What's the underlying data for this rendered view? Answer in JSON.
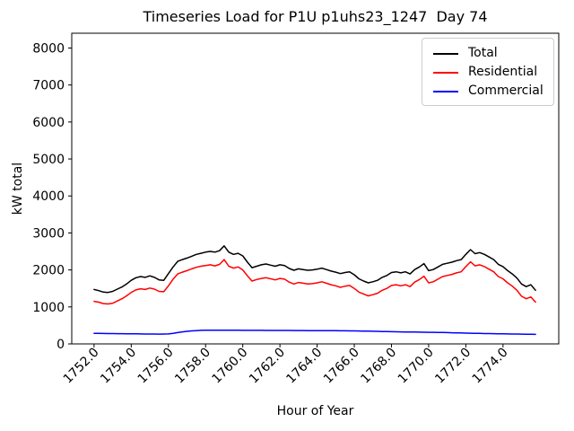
{
  "title": "Timeseries Load for P1U p1uhs23_1247  Day 74",
  "legend": {
    "position": "upper right",
    "items": [
      {
        "label": "Total",
        "color": "#000000"
      },
      {
        "label": "Residential",
        "color": "#ff0000"
      },
      {
        "label": "Commercial",
        "color": "#0000ff"
      }
    ]
  },
  "chart_data": {
    "type": "line",
    "title": "Timeseries Load for P1U p1uhs23_1247  Day 74",
    "xlabel": "Hour of Year",
    "ylabel": "kW total",
    "grid": false,
    "legend_position": "upper right",
    "xlim": [
      1750.8,
      1777.0
    ],
    "ylim": [
      0,
      8400
    ],
    "x_ticks": {
      "values": [
        1752,
        1754,
        1756,
        1758,
        1760,
        1762,
        1764,
        1766,
        1768,
        1770,
        1772,
        1774
      ],
      "labels": [
        "1752.0",
        "1754.0",
        "1756.0",
        "1758.0",
        "1760.0",
        "1762.0",
        "1764.0",
        "1766.0",
        "1768.0",
        "1770.0",
        "1772.0",
        "1774.0"
      ]
    },
    "y_ticks": {
      "values": [
        0,
        1000,
        2000,
        3000,
        4000,
        5000,
        6000,
        7000,
        8000
      ],
      "labels": [
        "0",
        "1000",
        "2000",
        "3000",
        "4000",
        "5000",
        "6000",
        "7000",
        "8000"
      ]
    },
    "x": [
      1752.0,
      1752.25,
      1752.5,
      1752.75,
      1753.0,
      1753.25,
      1753.5,
      1753.75,
      1754.0,
      1754.25,
      1754.5,
      1754.75,
      1755.0,
      1755.25,
      1755.5,
      1755.75,
      1756.0,
      1756.25,
      1756.5,
      1756.75,
      1757.0,
      1757.25,
      1757.5,
      1757.75,
      1758.0,
      1758.25,
      1758.5,
      1758.75,
      1759.0,
      1759.25,
      1759.5,
      1759.75,
      1760.0,
      1760.25,
      1760.5,
      1760.75,
      1761.0,
      1761.25,
      1761.5,
      1761.75,
      1762.0,
      1762.25,
      1762.5,
      1762.75,
      1763.0,
      1763.25,
      1763.5,
      1763.75,
      1764.0,
      1764.25,
      1764.5,
      1764.75,
      1765.0,
      1765.25,
      1765.5,
      1765.75,
      1766.0,
      1766.25,
      1766.5,
      1766.75,
      1767.0,
      1767.25,
      1767.5,
      1767.75,
      1768.0,
      1768.25,
      1768.5,
      1768.75,
      1769.0,
      1769.25,
      1769.5,
      1769.75,
      1770.0,
      1770.25,
      1770.5,
      1770.75,
      1771.0,
      1771.25,
      1771.5,
      1771.75,
      1772.0,
      1772.25,
      1772.5,
      1772.75,
      1773.0,
      1773.25,
      1773.5,
      1773.75,
      1774.0,
      1774.25,
      1774.5,
      1774.75,
      1775.0,
      1775.25,
      1775.5,
      1775.75
    ],
    "series": [
      {
        "name": "Total",
        "color": "#000000",
        "values": [
          1470,
          1440,
          1400,
          1390,
          1420,
          1480,
          1540,
          1620,
          1720,
          1790,
          1820,
          1800,
          1840,
          1800,
          1730,
          1720,
          1900,
          2080,
          2230,
          2280,
          2320,
          2370,
          2420,
          2450,
          2480,
          2500,
          2480,
          2520,
          2650,
          2480,
          2420,
          2450,
          2380,
          2210,
          2060,
          2100,
          2140,
          2160,
          2130,
          2100,
          2140,
          2120,
          2040,
          1990,
          2030,
          2010,
          1990,
          2000,
          2020,
          2050,
          2010,
          1970,
          1940,
          1900,
          1930,
          1950,
          1870,
          1760,
          1700,
          1650,
          1680,
          1720,
          1800,
          1850,
          1930,
          1950,
          1920,
          1950,
          1890,
          2010,
          2080,
          2170,
          1980,
          2010,
          2080,
          2150,
          2180,
          2210,
          2250,
          2280,
          2420,
          2550,
          2440,
          2470,
          2420,
          2350,
          2280,
          2150,
          2090,
          1980,
          1890,
          1780,
          1620,
          1550,
          1600,
          1450
        ]
      },
      {
        "name": "Residential",
        "color": "#ff0000",
        "values": [
          1150,
          1130,
          1090,
          1080,
          1100,
          1160,
          1220,
          1300,
          1390,
          1460,
          1490,
          1470,
          1510,
          1480,
          1420,
          1410,
          1570,
          1750,
          1890,
          1940,
          1980,
          2030,
          2070,
          2100,
          2120,
          2140,
          2110,
          2150,
          2280,
          2100,
          2050,
          2080,
          2000,
          1840,
          1700,
          1740,
          1770,
          1790,
          1760,
          1730,
          1770,
          1750,
          1670,
          1620,
          1660,
          1640,
          1620,
          1630,
          1650,
          1680,
          1640,
          1600,
          1570,
          1530,
          1560,
          1580,
          1500,
          1400,
          1350,
          1300,
          1330,
          1370,
          1450,
          1500,
          1580,
          1600,
          1570,
          1600,
          1550,
          1670,
          1740,
          1830,
          1650,
          1680,
          1750,
          1820,
          1850,
          1880,
          1920,
          1950,
          2090,
          2220,
          2110,
          2140,
          2090,
          2020,
          1950,
          1820,
          1760,
          1650,
          1560,
          1450,
          1290,
          1220,
          1270,
          1130
        ]
      },
      {
        "name": "Commercial",
        "color": "#0000ff",
        "values": [
          285,
          283,
          281,
          280,
          278,
          277,
          276,
          275,
          273,
          271,
          270,
          268,
          267,
          266,
          265,
          266,
          270,
          285,
          305,
          325,
          340,
          352,
          360,
          366,
          370,
          368,
          370,
          369,
          370,
          369,
          368,
          368,
          367,
          367,
          366,
          366,
          366,
          365,
          365,
          364,
          364,
          363,
          363,
          362,
          362,
          361,
          360,
          359,
          358,
          357,
          357,
          356,
          356,
          355,
          354,
          353,
          352,
          350,
          348,
          345,
          342,
          339,
          336,
          333,
          330,
          328,
          326,
          324,
          322,
          320,
          318,
          316,
          314,
          312,
          310,
          308,
          305,
          302,
          299,
          296,
          292,
          289,
          286,
          283,
          280,
          278,
          276,
          274,
          272,
          270,
          268,
          266,
          264,
          262,
          260,
          258
        ]
      }
    ]
  }
}
